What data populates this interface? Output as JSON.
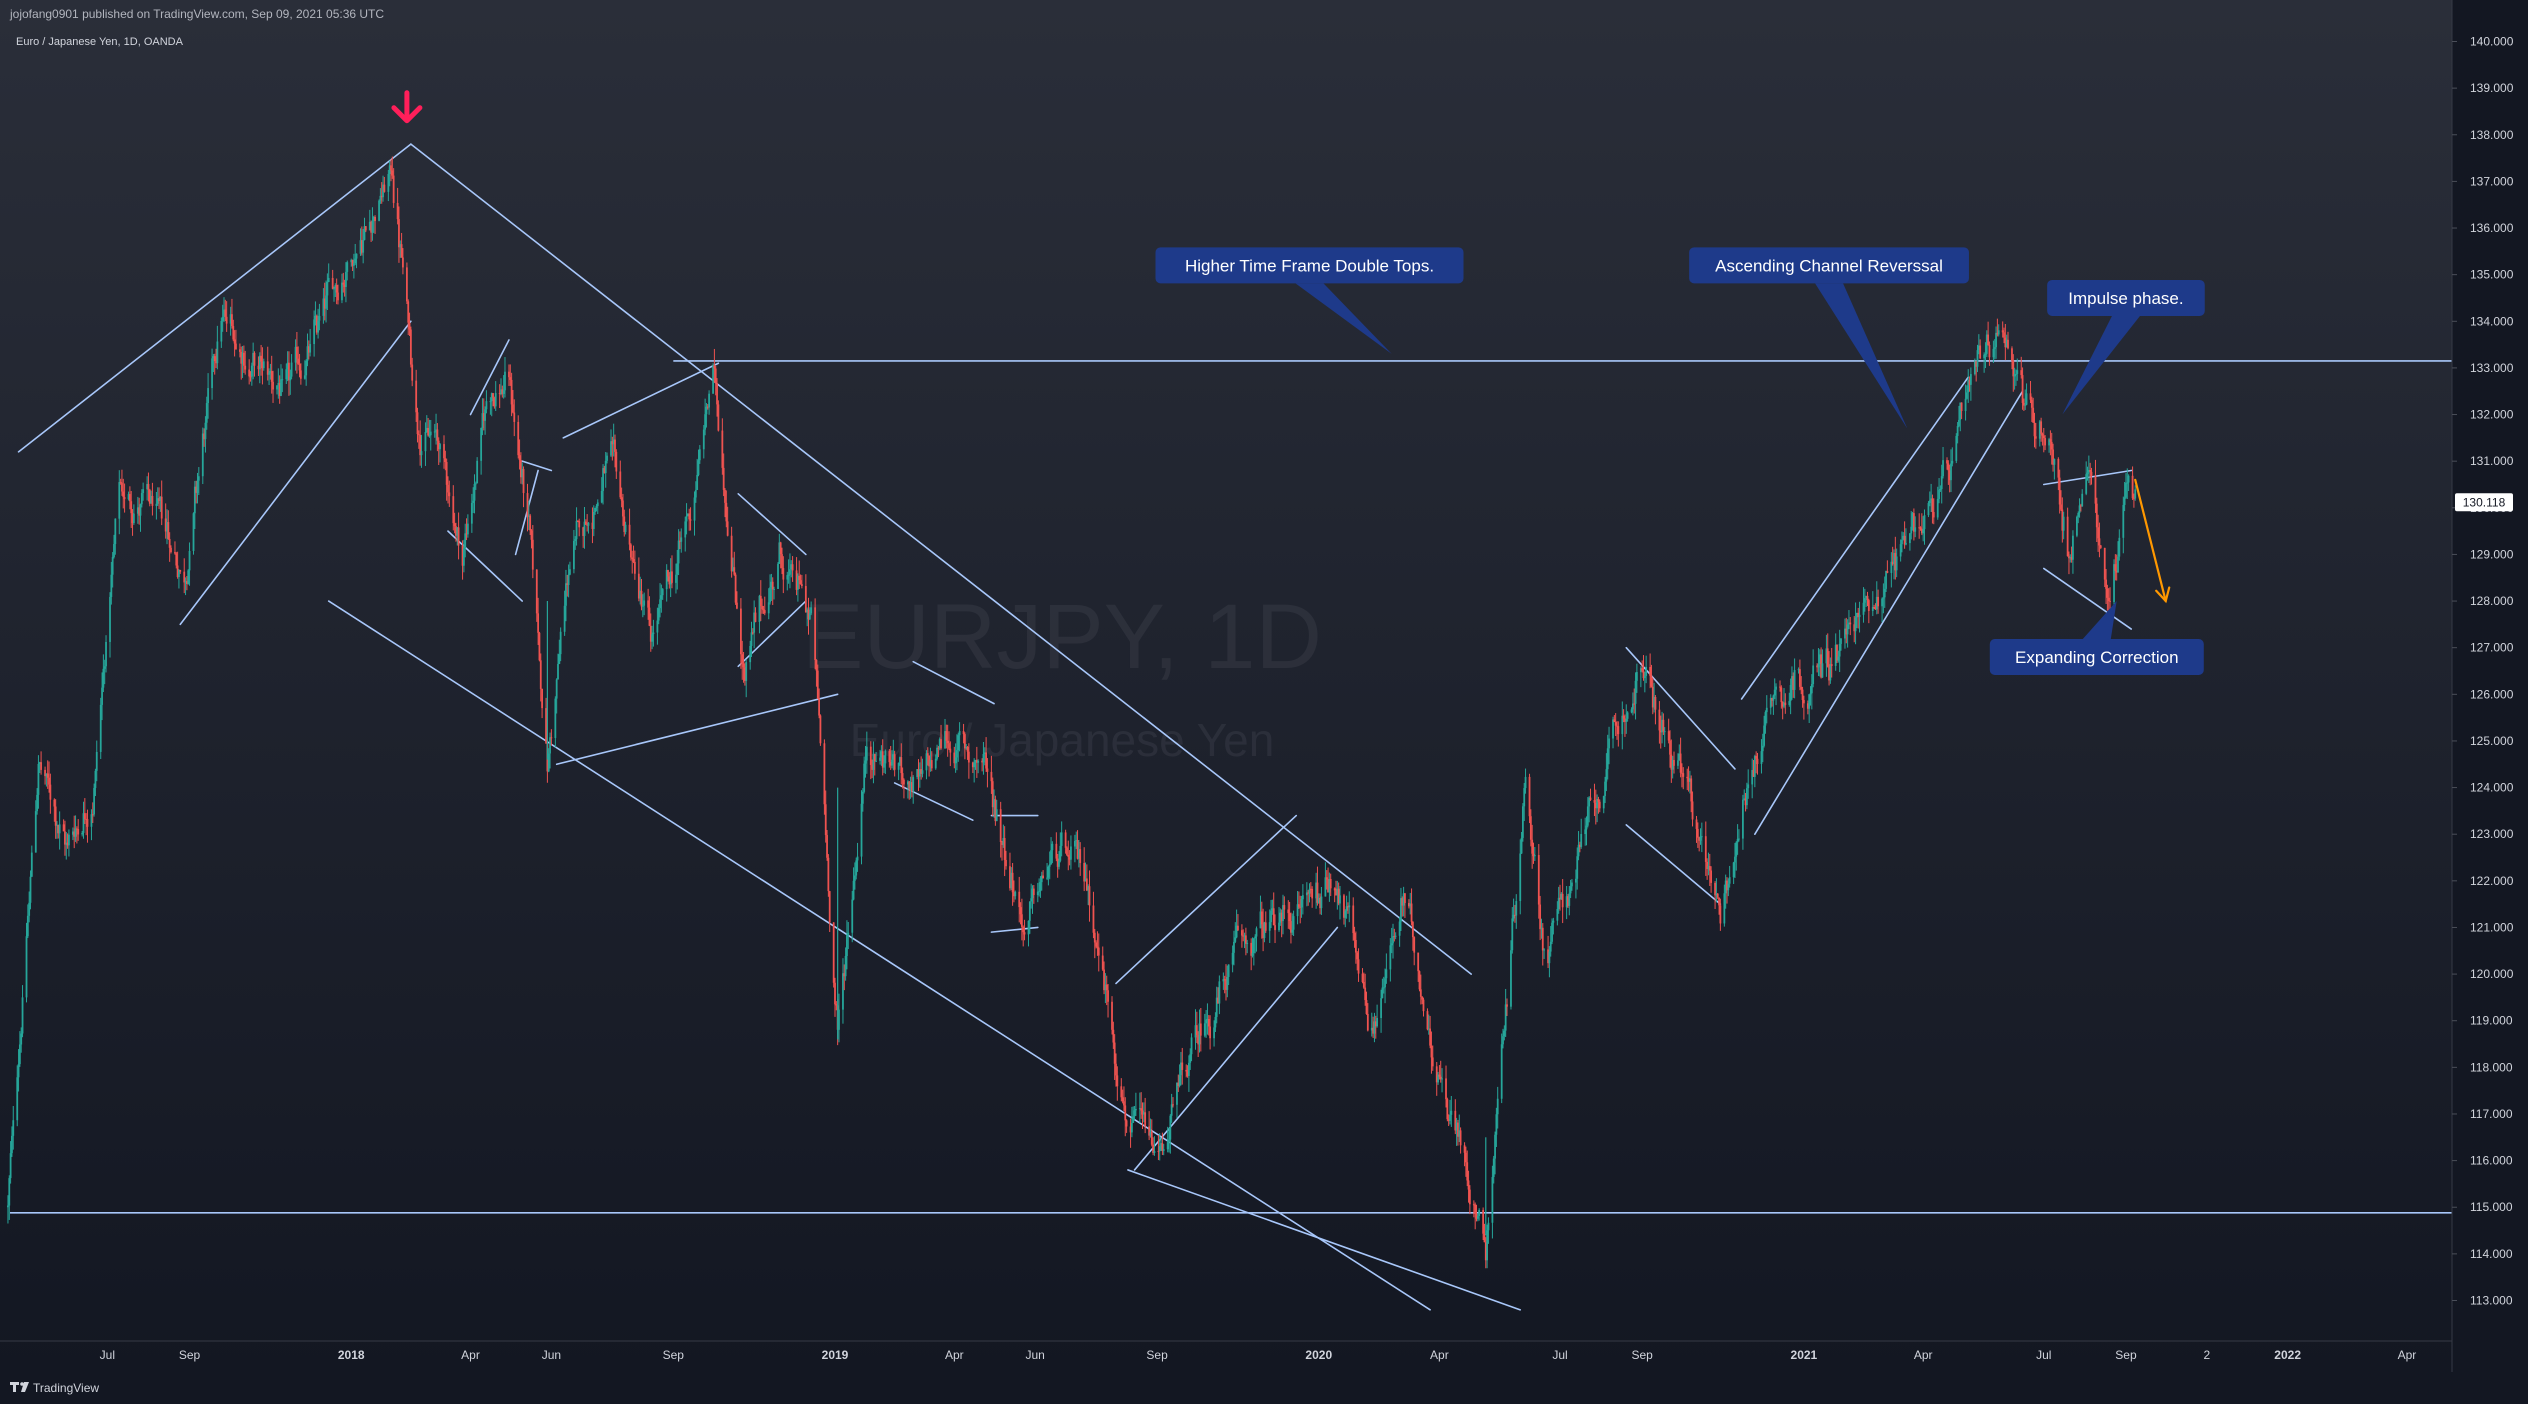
{
  "header": {
    "published_line": "jojofang0901 published on TradingView.com, Sep 09, 2021 05:36 UTC",
    "symbol_line": "Euro / Japanese Yen, 1D, OANDA"
  },
  "watermark": {
    "symbol": "EURJPY, 1D",
    "description": "Euro / Japanese Yen"
  },
  "footer": {
    "brand": "TradingView"
  },
  "colors": {
    "background_top": "#2a2e39",
    "background_bottom": "#131722",
    "candle_up": "#26a69a",
    "candle_down": "#ef5350",
    "trendline": "#a8c7fa",
    "callout_bg": "#1e3a8a",
    "arrow_red": "#ff1f5a",
    "arrow_orange": "#ff9800",
    "price_tag_bg": "#ffffff"
  },
  "annotations": [
    {
      "id": "double-tops",
      "text": "Higher Time Frame Double Tops."
    },
    {
      "id": "channel-reversal",
      "text": "Ascending Channel Reverssal"
    },
    {
      "id": "impulse",
      "text": "Impulse phase."
    },
    {
      "id": "expanding",
      "text": "Expanding Correction"
    }
  ],
  "chart_data": {
    "type": "candlestick",
    "symbol": "EURJPY",
    "timeframe": "1D",
    "exchange": "OANDA",
    "last_price": "130.118",
    "ylim": [
      112.5,
      140.3
    ],
    "y_ticks": [
      "140.000",
      "139.000",
      "138.000",
      "137.000",
      "136.000",
      "135.000",
      "134.000",
      "133.000",
      "132.000",
      "131.000",
      "130.000",
      "129.000",
      "128.000",
      "127.000",
      "126.000",
      "125.000",
      "124.000",
      "123.000",
      "122.000",
      "121.000",
      "120.000",
      "119.000",
      "118.000",
      "117.000",
      "116.000",
      "115.000",
      "114.000",
      "113.000"
    ],
    "x_ticks": [
      "Jul",
      "Sep",
      "2018",
      "Apr",
      "Jun",
      "Sep",
      "2019",
      "Apr",
      "Jun",
      "Sep",
      "2020",
      "Apr",
      "Jul",
      "Sep",
      "2021",
      "Apr",
      "Jul",
      "Sep",
      "2",
      "2022",
      "Apr"
    ],
    "x_tick_dates": [
      "2017-07-01",
      "2017-09-01",
      "2018-01-01",
      "2018-04-01",
      "2018-06-01",
      "2018-09-01",
      "2019-01-01",
      "2019-04-01",
      "2019-06-01",
      "2019-09-01",
      "2020-01-01",
      "2020-04-01",
      "2020-07-01",
      "2020-09-01",
      "2021-01-01",
      "2021-04-01",
      "2021-07-01",
      "2021-09-01",
      "2021-11-01",
      "2022-01-01",
      "2022-04-01"
    ],
    "xlim": [
      "2017-04-11",
      "2022-05-05"
    ],
    "price_path": [
      [
        "2017-04-17",
        115.0
      ],
      [
        "2017-05-10",
        124.5
      ],
      [
        "2017-06-01",
        122.8
      ],
      [
        "2017-06-20",
        124.0
      ],
      [
        "2017-07-10",
        130.3
      ],
      [
        "2017-08-01",
        130.0
      ],
      [
        "2017-08-28",
        128.6
      ],
      [
        "2017-09-25",
        134.0
      ],
      [
        "2017-10-20",
        133.0
      ],
      [
        "2017-11-15",
        132.4
      ],
      [
        "2017-12-10",
        134.0
      ],
      [
        "2018-01-05",
        135.8
      ],
      [
        "2018-02-01",
        137.2
      ],
      [
        "2018-02-20",
        132.0
      ],
      [
        "2018-03-08",
        131.3
      ],
      [
        "2018-03-26",
        129.0
      ],
      [
        "2018-04-15",
        132.5
      ],
      [
        "2018-04-30",
        132.8
      ],
      [
        "2018-05-15",
        129.5
      ],
      [
        "2018-05-29",
        124.5
      ],
      [
        "2018-06-15",
        128.8
      ],
      [
        "2018-07-15",
        131.0
      ],
      [
        "2018-08-15",
        127.0
      ],
      [
        "2018-09-01",
        128.5
      ],
      [
        "2018-09-15",
        130.0
      ],
      [
        "2018-10-01",
        132.9
      ],
      [
        "2018-10-25",
        126.5
      ],
      [
        "2018-11-20",
        129.0
      ],
      [
        "2018-12-15",
        127.5
      ],
      [
        "2019-01-03",
        118.7
      ],
      [
        "2019-01-25",
        125.0
      ],
      [
        "2019-03-08",
        124.0
      ],
      [
        "2019-03-25",
        125.0
      ],
      [
        "2019-04-25",
        124.5
      ],
      [
        "2019-05-25",
        121.0
      ],
      [
        "2019-06-15",
        122.5
      ],
      [
        "2019-07-10",
        122.0
      ],
      [
        "2019-08-10",
        117.0
      ],
      [
        "2019-09-01",
        115.9
      ],
      [
        "2019-10-01",
        118.5
      ],
      [
        "2019-11-01",
        120.5
      ],
      [
        "2019-12-01",
        121.0
      ],
      [
        "2020-01-15",
        122.2
      ],
      [
        "2020-02-10",
        119.0
      ],
      [
        "2020-03-05",
        121.5
      ],
      [
        "2020-04-01",
        118.0
      ],
      [
        "2020-05-06",
        114.4
      ],
      [
        "2020-06-05",
        124.3
      ],
      [
        "2020-06-20",
        120.5
      ],
      [
        "2020-07-15",
        122.5
      ],
      [
        "2020-08-31",
        126.6
      ],
      [
        "2020-10-01",
        124.0
      ],
      [
        "2020-10-30",
        121.6
      ],
      [
        "2020-11-20",
        124.0
      ],
      [
        "2020-12-10",
        126.3
      ],
      [
        "2021-01-15",
        126.5
      ],
      [
        "2021-02-10",
        127.5
      ],
      [
        "2021-03-01",
        128.5
      ],
      [
        "2021-03-31",
        130.0
      ],
      [
        "2021-04-20",
        130.5
      ],
      [
        "2021-05-10",
        132.5
      ],
      [
        "2021-06-01",
        134.1
      ],
      [
        "2021-06-20",
        132.0
      ],
      [
        "2021-07-05",
        131.7
      ],
      [
        "2021-07-20",
        129.0
      ],
      [
        "2021-08-05",
        130.5
      ],
      [
        "2021-08-19",
        128.0
      ],
      [
        "2021-09-03",
        130.8
      ],
      [
        "2021-09-08",
        130.1
      ]
    ],
    "levels": [
      133.15,
      114.88
    ],
    "annotation_anchors": {
      "red_arrow": [
        "2018-02-12",
        138.6
      ],
      "double-tops": [
        "2019-12-25",
        135.2,
        "2020-02-25",
        133.3
      ],
      "channel-reversal": [
        "2021-01-20",
        135.2,
        "2021-03-20",
        131.7
      ],
      "impulse": [
        "2021-09-01",
        134.5,
        "2021-07-15",
        132.0
      ],
      "expanding": [
        "2021-08-10",
        126.8,
        "2021-08-25",
        128.0
      ],
      "orange_arrow": [
        "2021-09-08",
        130.6,
        "2021-10-01",
        128.0
      ]
    },
    "trendlines": [
      [
        [
          "2017-04-25",
          131.2
        ],
        [
          "2018-02-15",
          137.8
        ]
      ],
      [
        [
          "2017-08-25",
          127.5
        ],
        [
          "2018-02-15",
          134.0
        ]
      ],
      [
        [
          "2018-02-15",
          137.8
        ],
        [
          "2020-04-25",
          120.0
        ]
      ],
      [
        [
          "2017-12-15",
          128.0
        ],
        [
          "2020-03-25",
          112.8
        ]
      ],
      [
        [
          "2018-06-05",
          124.5
        ],
        [
          "2019-01-03",
          126.0
        ]
      ],
      [
        [
          "2018-06-10",
          131.5
        ],
        [
          "2018-10-05",
          133.1
        ]
      ],
      [
        [
          "2018-04-01",
          132.0
        ],
        [
          "2018-04-30",
          133.6
        ]
      ],
      [
        [
          "2018-03-15",
          129.5
        ],
        [
          "2018-05-10",
          128.0
        ]
      ],
      [
        [
          "2018-05-05",
          129.0
        ],
        [
          "2018-05-22",
          130.8
        ]
      ],
      [
        [
          "2018-05-10",
          131.0
        ],
        [
          "2018-06-01",
          130.8
        ]
      ],
      [
        [
          "2018-10-20",
          130.3
        ],
        [
          "2018-12-10",
          129.0
        ]
      ],
      [
        [
          "2018-10-20",
          126.6
        ],
        [
          "2018-12-10",
          128.0
        ]
      ],
      [
        [
          "2019-02-15",
          124.1
        ],
        [
          "2019-04-15",
          123.3
        ]
      ],
      [
        [
          "2019-03-01",
          126.7
        ],
        [
          "2019-05-01",
          125.8
        ]
      ],
      [
        [
          "2019-04-29",
          123.4
        ],
        [
          "2019-06-03",
          123.4
        ]
      ],
      [
        [
          "2019-04-29",
          120.9
        ],
        [
          "2019-06-03",
          121.0
        ]
      ],
      [
        [
          "2019-08-01",
          119.8
        ],
        [
          "2019-12-15",
          123.4
        ]
      ],
      [
        [
          "2019-08-15",
          115.8
        ],
        [
          "2020-01-15",
          121.0
        ]
      ],
      [
        [
          "2019-08-10",
          115.8
        ],
        [
          "2020-06-01",
          112.8
        ]
      ],
      [
        [
          "2020-08-20",
          127.0
        ],
        [
          "2020-11-10",
          124.4
        ]
      ],
      [
        [
          "2020-08-20",
          123.2
        ],
        [
          "2020-10-30",
          121.5
        ]
      ],
      [
        [
          "2020-11-15",
          125.9
        ],
        [
          "2021-05-05",
          132.8
        ]
      ],
      [
        [
          "2020-11-25",
          123.0
        ],
        [
          "2021-06-15",
          132.5
        ]
      ],
      [
        [
          "2021-07-01",
          130.5
        ],
        [
          "2021-09-05",
          130.8
        ]
      ],
      [
        [
          "2021-07-01",
          128.7
        ],
        [
          "2021-09-05",
          127.4
        ]
      ]
    ]
  }
}
